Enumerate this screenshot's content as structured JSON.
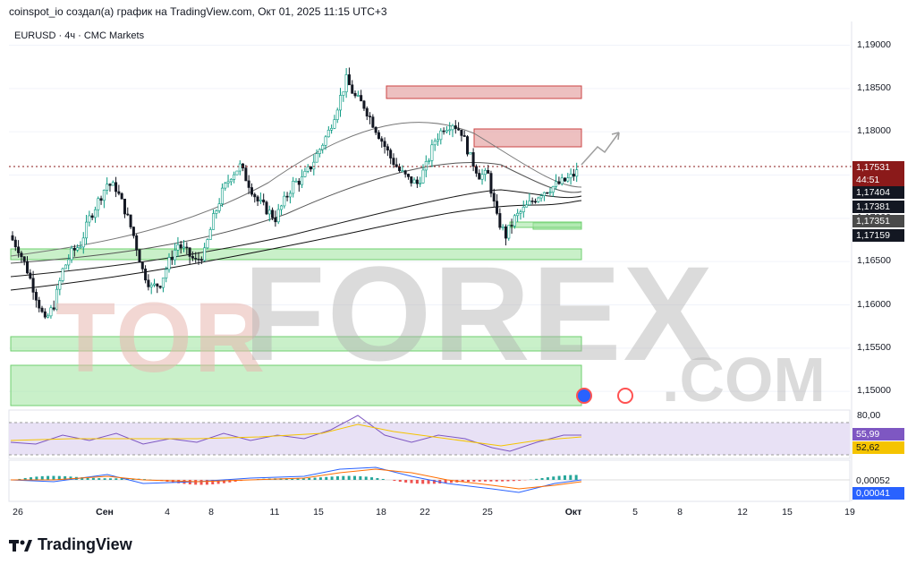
{
  "header": {
    "text": "coinspot_io создал(а) график на TradingView.com, Окт 01, 2025 11:15 UTC+3"
  },
  "symbol": {
    "label": "EURUSD · 4ч · CMC Markets"
  },
  "watermark": {
    "left": "TOR",
    "mid": "FOREX",
    "right": ".COM"
  },
  "footer": {
    "brand": "TradingView"
  },
  "price_tags": [
    {
      "value": "1,17531",
      "color": "#8b1a1a"
    },
    {
      "value": "44:51",
      "color": "#8b1a1a"
    },
    {
      "value": "1,17404",
      "color": "#131722"
    },
    {
      "value": "1,17381",
      "color": "#131722"
    },
    {
      "value": "1,17351",
      "color": "#4a4a4a"
    },
    {
      "value": "1,17159",
      "color": "#131722"
    }
  ],
  "rsi_tags": [
    {
      "value": "55,99",
      "color": "#7e57c2"
    },
    {
      "value": "52,62",
      "color": "#f5c400"
    }
  ],
  "macd_tags": [
    {
      "value": "0,00052",
      "color": "#ffffff"
    },
    {
      "value": "0,00041",
      "color": "#2962ff"
    }
  ],
  "rsi_top_label": "80,00",
  "chart_data": {
    "type": "candlestick",
    "symbol": "EURUSD",
    "timeframe": "4ч",
    "y_ticks": [
      "1,19000",
      "1,18500",
      "1,18000",
      "1,17500",
      "1,17000",
      "1,16500",
      "1,16000",
      "1,15500",
      "1,15000"
    ],
    "ylim": [
      1.1495,
      1.1915
    ],
    "x_ticks": [
      "26",
      "Сен",
      "4",
      "8",
      "11",
      "15",
      "18",
      "22",
      "25",
      "Окт",
      "5",
      "8",
      "12",
      "15",
      "19"
    ],
    "close_path": [
      1.168,
      1.1665,
      1.164,
      1.161,
      1.158,
      1.16,
      1.164,
      1.166,
      1.167,
      1.17,
      1.172,
      1.174,
      1.1735,
      1.171,
      1.168,
      1.164,
      1.162,
      1.1625,
      1.165,
      1.167,
      1.166,
      1.165,
      1.166,
      1.17,
      1.173,
      1.175,
      1.176,
      1.174,
      1.172,
      1.171,
      1.17,
      1.172,
      1.174,
      1.1745,
      1.176,
      1.178,
      1.18,
      1.183,
      1.186,
      1.184,
      1.183,
      1.181,
      1.179,
      1.177,
      1.1755,
      1.1745,
      1.174,
      1.176,
      1.179,
      1.1805,
      1.181,
      1.18,
      1.177,
      1.175,
      1.175,
      1.17,
      1.168,
      1.17,
      1.171,
      1.172,
      1.173,
      1.1735,
      1.174,
      1.1745,
      1.1753
    ],
    "rsi_level": "80,00",
    "rsi_value": "55,99",
    "rsi_ma": "52,62",
    "macd": "0,00052",
    "macd_signal": "0,00041"
  }
}
